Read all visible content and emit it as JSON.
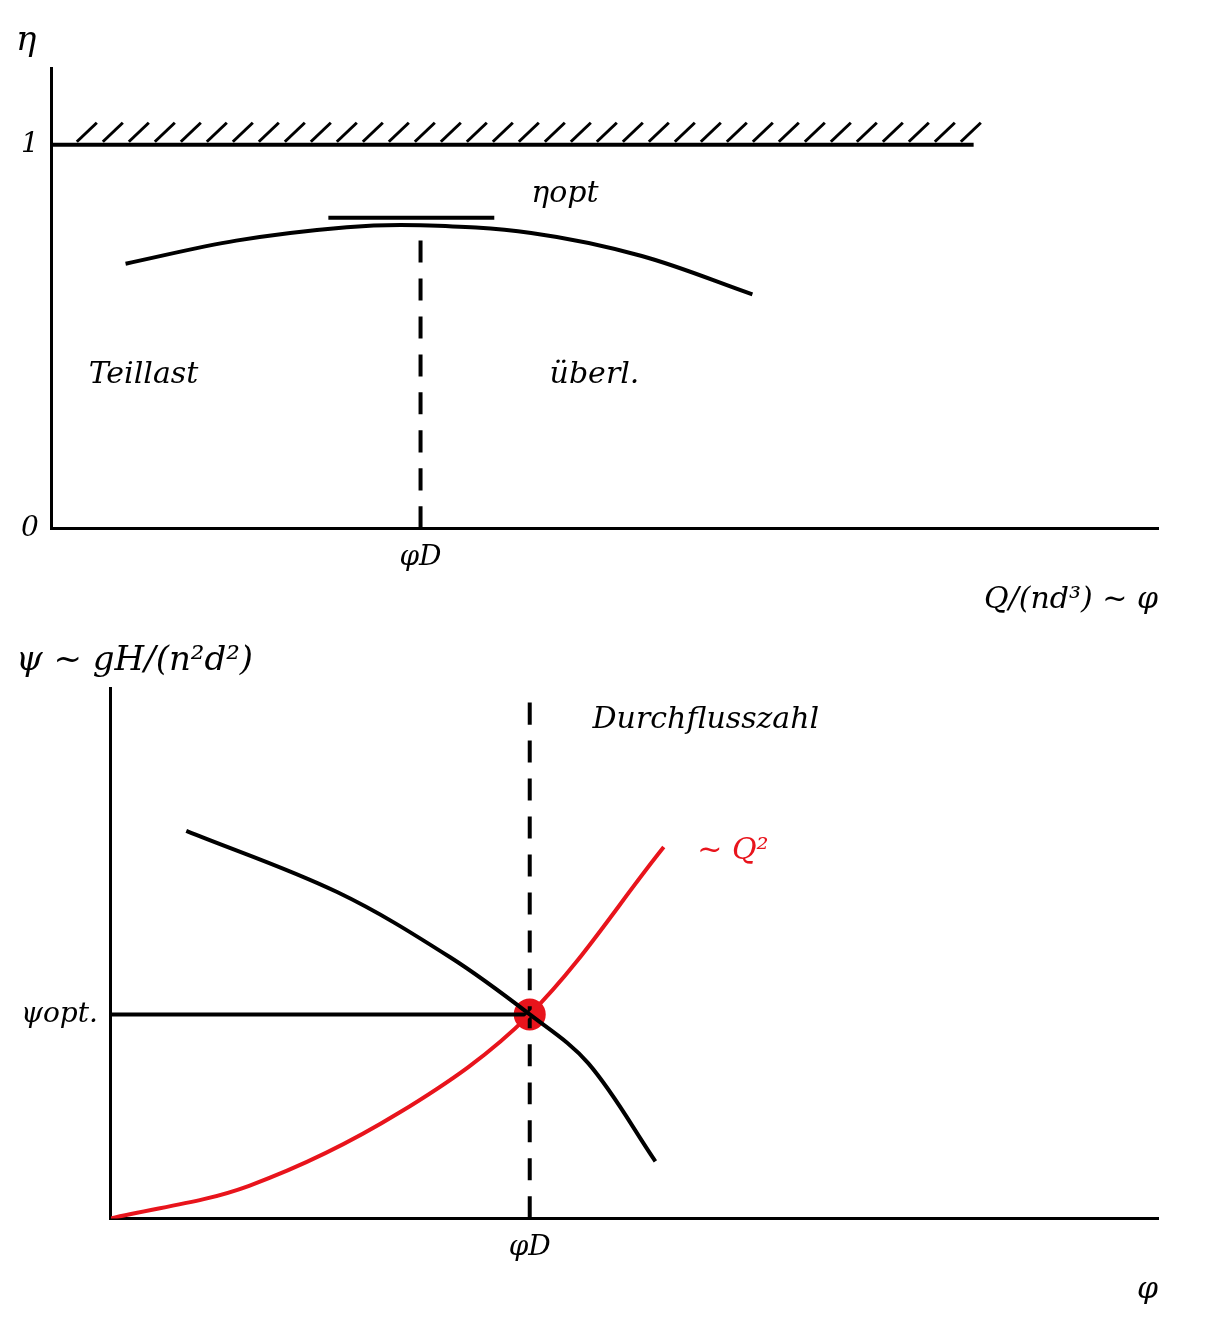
{
  "chart_data": [
    {
      "type": "line",
      "x_label": "Q/(nd³) ~ φ",
      "y_label": "η",
      "xlim": [
        0,
        3
      ],
      "xticks": [
        {
          "value": 1,
          "label": "φD"
        }
      ],
      "ylim": [
        0,
        1.2
      ],
      "yticks": [
        0,
        1
      ],
      "grid": false,
      "series": [
        {
          "type": "line",
          "color": "#000000",
          "marker": "none",
          "line_style": "solid",
          "x": [
            0.2,
            0.5,
            0.8,
            1.0,
            1.3,
            1.6,
            1.9
          ],
          "values": [
            0.69,
            0.75,
            0.785,
            0.79,
            0.77,
            0.71,
            0.61
          ]
        },
        {
          "type": "line",
          "color": "#000000",
          "marker": "none",
          "line_style": "solid",
          "x": [
            0.75,
            1.2
          ],
          "values": [
            0.81,
            0.81
          ]
        },
        {
          "type": "line",
          "color": "#000000",
          "marker": "none",
          "line_style": "hatched",
          "x": [
            0,
            2.5
          ],
          "values": [
            1,
            1
          ]
        },
        {
          "type": "line",
          "color": "#000000",
          "marker": "none",
          "line_style": "dashed",
          "x": [
            1,
            1
          ],
          "values": [
            0,
            0.79
          ]
        }
      ],
      "annotations": [
        {
          "text": "ηopt",
          "x": 1.3,
          "y": 0.87,
          "color": "#000000"
        },
        {
          "text": "Teillast",
          "x": 0.1,
          "y": 0.4,
          "color": "#000000"
        },
        {
          "text": "überl.",
          "x": 1.35,
          "y": 0.4,
          "color": "#000000"
        }
      ]
    },
    {
      "type": "line",
      "x_label": "φ",
      "y_label": "ψ ~ gH/(n²d²)",
      "xlim": [
        0,
        2.5
      ],
      "xticks": [
        {
          "value": 1,
          "label": "φD"
        }
      ],
      "ylim": [
        0,
        1.3
      ],
      "yticks": [
        {
          "value": 0.5,
          "label": "ψopt."
        }
      ],
      "grid": false,
      "series": [
        {
          "type": "line",
          "color": "#000000",
          "marker": "none",
          "line_style": "solid",
          "x": [
            0.18,
            0.54,
            0.81,
            1.0,
            1.14,
            1.3
          ],
          "values": [
            0.95,
            0.8,
            0.64,
            0.5,
            0.38,
            0.14
          ]
        },
        {
          "type": "line",
          "color": "#e8141c",
          "marker": "none",
          "line_style": "solid",
          "x": [
            0,
            0.33,
            0.69,
            1.0,
            1.32
          ],
          "values": [
            0,
            0.08,
            0.26,
            0.5,
            0.91
          ]
        },
        {
          "type": "line",
          "color": "#000000",
          "marker": "none",
          "line_style": "solid",
          "x": [
            0,
            1
          ],
          "values": [
            0.5,
            0.5
          ]
        },
        {
          "type": "line",
          "color": "#000000",
          "marker": "none",
          "line_style": "dashed",
          "x": [
            1,
            1
          ],
          "values": [
            0,
            1.3
          ]
        },
        {
          "type": "scatter",
          "color": "#e8141c",
          "marker": "circle",
          "x": [
            1
          ],
          "values": [
            0.5
          ]
        }
      ],
      "annotations": [
        {
          "text": "~ Q²",
          "x": 1.4,
          "y": 0.9,
          "color": "#e8141c"
        },
        {
          "text": "Durchflusszahl",
          "x": 1.15,
          "y": 1.22,
          "color": "#000000"
        }
      ]
    }
  ]
}
